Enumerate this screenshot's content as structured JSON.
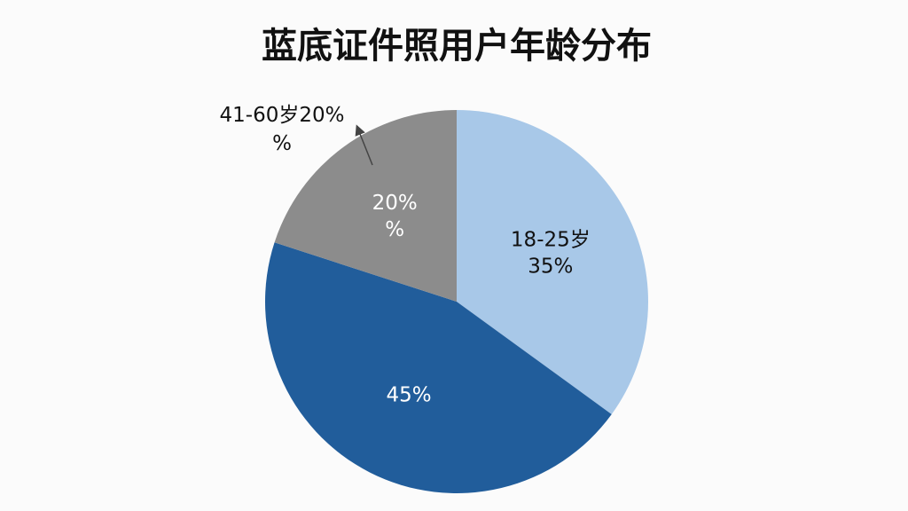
{
  "chart_data": {
    "type": "pie",
    "title": "蓝底证件照用户年龄分布",
    "categories": [
      "18-25岁",
      null,
      null
    ],
    "values": [
      35,
      45,
      20
    ],
    "value_labels": [
      "35%",
      "45%",
      "20%\n%"
    ],
    "colors": [
      "#a8c8e8",
      "#215d9b",
      "#8c8c8c"
    ],
    "label_colors": [
      "#111111",
      "#ffffff",
      "#ffffff"
    ],
    "annotations": [
      {
        "text": "41-60岁20%\n%"
      }
    ]
  }
}
